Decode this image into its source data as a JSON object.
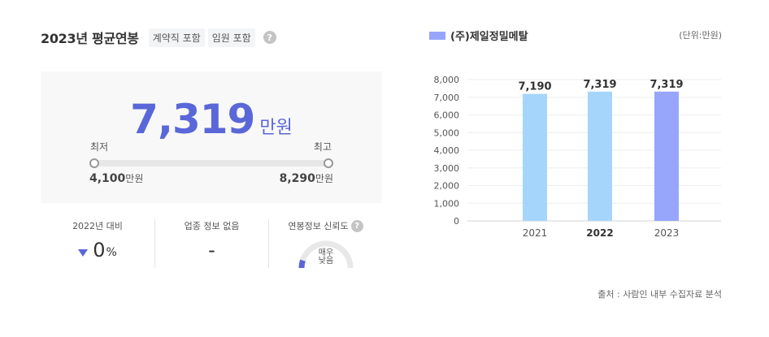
{
  "header": {
    "title": "2023년 평균연봉",
    "tags": [
      "계약직 포함",
      "임원 포함"
    ],
    "help_glyph": "?"
  },
  "salary": {
    "value": "7,319",
    "unit": "만원",
    "min_label": "최저",
    "max_label": "최고",
    "min_value": "4,100",
    "max_value": "8,290",
    "range_unit": "만원"
  },
  "stats": {
    "yoy_label": "2022년 대비",
    "yoy_value": "0",
    "yoy_unit": "%",
    "industry_label": "업종 정보 없음",
    "industry_value": "-",
    "reliability_label": "연봉정보 신뢰도",
    "reliability_line1": "매우",
    "reliability_line2": "낮음",
    "reliability_level": 0.1
  },
  "colors": {
    "accent": "#5a67d8",
    "bar_past": "#a6d5fb",
    "bar_current": "#97a6fb",
    "gauge_track": "#e8e8e8"
  },
  "legend": {
    "label": "(주)제일정밀메탈"
  },
  "unit_note": "(단위:만원)",
  "source_note": "출처 : 사람인 내부 수집자료 분석",
  "chart_data": {
    "type": "bar",
    "categories": [
      "2021",
      "2022",
      "2023"
    ],
    "values": [
      7190,
      7319,
      7319
    ],
    "value_labels": [
      "7,190",
      "7,319",
      "7,319"
    ],
    "y_ticks": [
      "0",
      "1,000",
      "2,000",
      "3,000",
      "4,000",
      "5,000",
      "6,000",
      "7,000",
      "8,000"
    ],
    "ylim": [
      0,
      8000
    ],
    "bold_categories": [
      "2022"
    ],
    "highlight_index": 2,
    "grid": true
  }
}
